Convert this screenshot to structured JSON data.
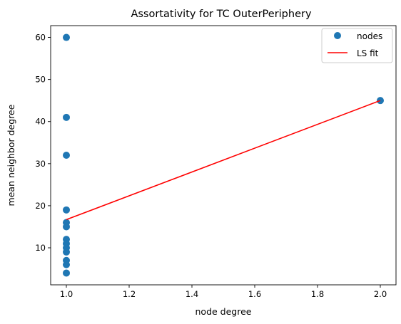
{
  "chart_data": {
    "type": "scatter",
    "title": "Assortativity for TC OuterPeriphery",
    "xlabel": "node degree",
    "ylabel": "mean neighbor degree",
    "xlim": [
      0.95,
      2.05
    ],
    "ylim": [
      1.2,
      62.8
    ],
    "x_ticks": [
      1.0,
      1.2,
      1.4,
      1.6,
      1.8,
      2.0
    ],
    "x_tick_labels": [
      "1.0",
      "1.2",
      "1.4",
      "1.6",
      "1.8",
      "2.0"
    ],
    "y_ticks": [
      10,
      20,
      30,
      40,
      50,
      60
    ],
    "y_tick_labels": [
      "10",
      "20",
      "30",
      "40",
      "50",
      "60"
    ],
    "grid": false,
    "legend_position": "top-right",
    "series": [
      {
        "name": "nodes",
        "kind": "scatter",
        "color": "#1f77b4",
        "points": [
          [
            1,
            60
          ],
          [
            1,
            41
          ],
          [
            1,
            32
          ],
          [
            1,
            19
          ],
          [
            1,
            16
          ],
          [
            1,
            15
          ],
          [
            1,
            12
          ],
          [
            1,
            11
          ],
          [
            1,
            10
          ],
          [
            1,
            9
          ],
          [
            1,
            7
          ],
          [
            1,
            6
          ],
          [
            1,
            4
          ],
          [
            2,
            45
          ]
        ]
      },
      {
        "name": "LS fit",
        "kind": "line",
        "color": "#ff0000",
        "points": [
          [
            1,
            16.7
          ],
          [
            2,
            45
          ]
        ]
      }
    ]
  }
}
